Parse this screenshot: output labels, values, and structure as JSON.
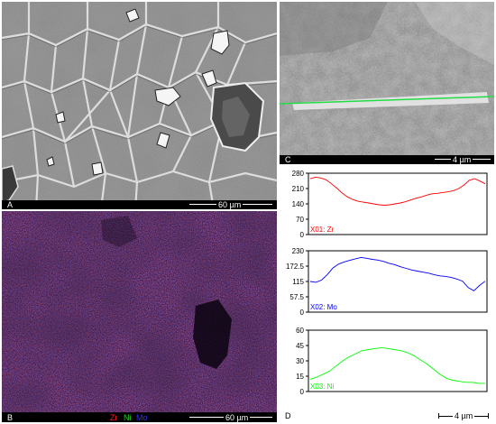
{
  "panels": {
    "a": {
      "letter": "A",
      "scalebar_label": "60 µm",
      "colors": {
        "background": "#8a8a8a",
        "bar_area": "#000000",
        "text": "#ffffff"
      }
    },
    "b": {
      "letter": "B",
      "scalebar_label": "60 µm",
      "legend": [
        {
          "label": "Zr",
          "color": "#ff2020"
        },
        {
          "label": "Ni",
          "color": "#20d020"
        },
        {
          "label": "Mo",
          "color": "#3030ff"
        }
      ],
      "colors": {
        "background": "#2a1238",
        "text": "#ffffff"
      }
    },
    "c": {
      "letter": "C",
      "scalebar_label": "4 µm",
      "colors": {
        "background": "#9a9a9a",
        "line_scan": "#22dd44",
        "text": "#ffffff"
      }
    },
    "d": {
      "letter": "D",
      "scalebar_label": "4 µm",
      "colors": {
        "text": "#000000"
      }
    }
  },
  "chart_data": [
    {
      "type": "line",
      "series": [
        {
          "name": "X01: Zr",
          "color": "#ff0000",
          "values": [
            255,
            262,
            258,
            250,
            232,
            212,
            190,
            172,
            160,
            152,
            148,
            144,
            140,
            136,
            134,
            136,
            140,
            144,
            150,
            158,
            166,
            172,
            180,
            186,
            188,
            192,
            195,
            200,
            210,
            226,
            248,
            255,
            244,
            232
          ]
        }
      ],
      "ylim": [
        0,
        280
      ],
      "yticks": [
        "0",
        "70",
        "140",
        "210",
        "280"
      ]
    },
    {
      "type": "line",
      "series": [
        {
          "name": "X02: Mo",
          "color": "#0000ff",
          "values": [
            115,
            112,
            120,
            140,
            165,
            180,
            188,
            194,
            200,
            205,
            202,
            198,
            195,
            190,
            183,
            178,
            170,
            164,
            158,
            154,
            150,
            146,
            140,
            136,
            134,
            130,
            124,
            116,
            92,
            80,
            100,
            116
          ]
        }
      ],
      "ylim": [
        0,
        230
      ],
      "yticks": [
        "0",
        "57.5",
        "115",
        "172.5",
        "230"
      ]
    },
    {
      "type": "line",
      "series": [
        {
          "name": "X03: Ni",
          "color": "#00ff00",
          "values": [
            12,
            14,
            17,
            20,
            25,
            30,
            34,
            37,
            40,
            41,
            42,
            43,
            42,
            41,
            40,
            38,
            35,
            31,
            27,
            22,
            17,
            13,
            11,
            10,
            9,
            9,
            8,
            8
          ]
        }
      ],
      "ylim": [
        0,
        60
      ],
      "yticks": [
        "0",
        "15",
        "30",
        "45",
        "60"
      ]
    }
  ]
}
